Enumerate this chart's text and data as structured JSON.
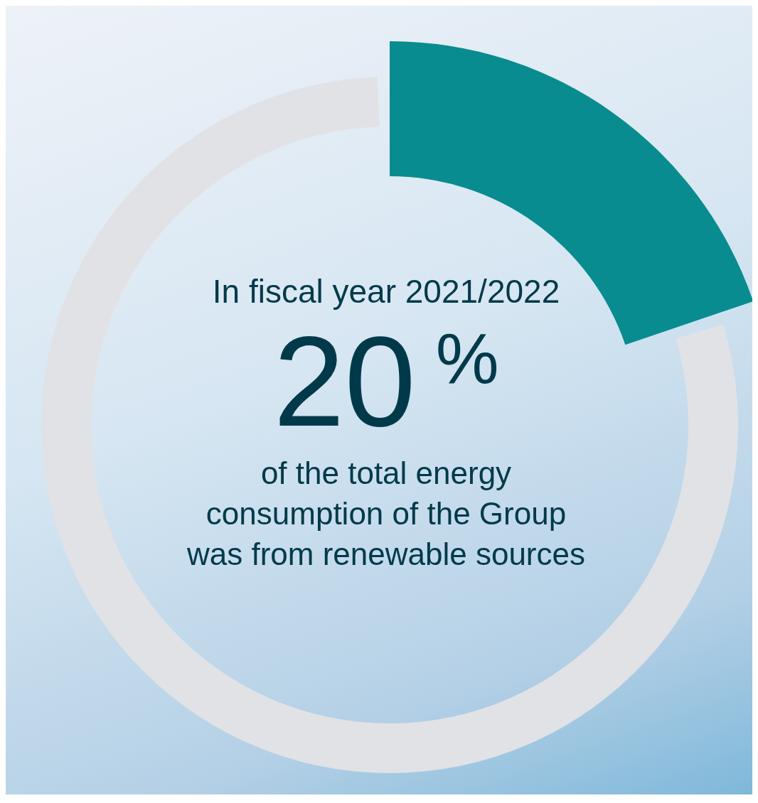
{
  "chart_data": {
    "type": "donut",
    "title": "In fiscal year 2021/2022",
    "categories": [
      null,
      null
    ],
    "values": [
      20,
      80
    ],
    "colors": [
      "#088c8f",
      "#e0e2e5"
    ],
    "value_labels": [
      "20$^{%}$",
      null
    ],
    "annotations": [
      "of the total energy consumption of the Group was from renewable sources"
    ]
  }
}
